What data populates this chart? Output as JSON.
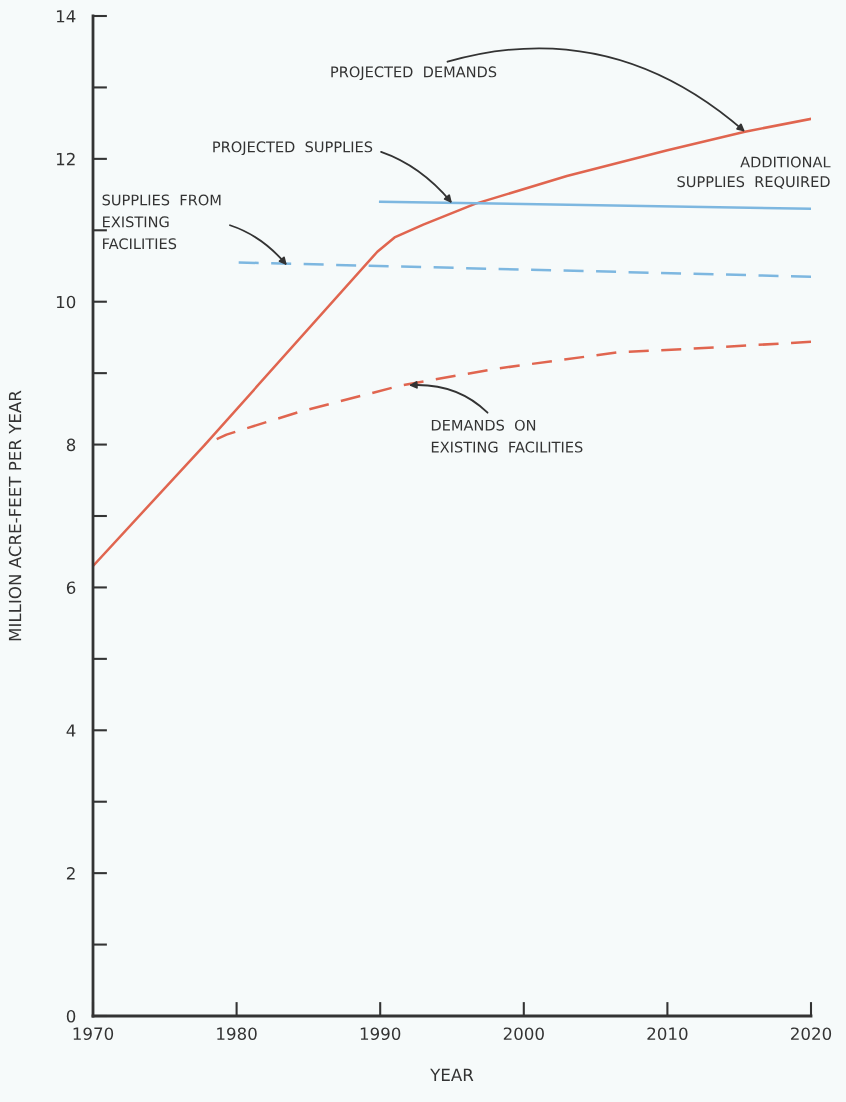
{
  "chart_data": {
    "type": "line",
    "xlabel": "YEAR",
    "ylabel": "MILLION ACRE-FEET PER YEAR",
    "xlim": [
      1970,
      2020
    ],
    "xticks": [
      1970,
      1980,
      1990,
      2000,
      2010,
      2020
    ],
    "ylim": [
      0,
      14
    ],
    "yticks": [
      0,
      {
        "value": 1,
        "label": null
      },
      2,
      {
        "value": 3,
        "label": null
      },
      4,
      {
        "value": 5,
        "label": null
      },
      6,
      {
        "value": 7,
        "label": null
      },
      8,
      {
        "value": 9,
        "label": null
      },
      10,
      {
        "value": 11,
        "label": null
      },
      12,
      {
        "value": 13,
        "label": null
      },
      14
    ],
    "grid": false,
    "legend": false,
    "series": [
      {
        "color": "#e0654f",
        "line_style": "solid",
        "x": [
          1970,
          1977.8,
          1989.8,
          1991,
          1993,
          1996.6,
          2003,
          2010,
          2015.4,
          2020
        ],
        "values": [
          6.3,
          8.0,
          10.7,
          10.9,
          11.08,
          11.37,
          11.76,
          12.12,
          12.38,
          12.56
        ]
      },
      {
        "color": "#e0654f",
        "line_style": "dashed",
        "x": [
          1977.8,
          1979.3,
          1984.4,
          1991.5,
          1998,
          2006.5,
          2013.3,
          2020
        ],
        "values": [
          8.0,
          8.14,
          8.46,
          8.83,
          9.06,
          9.29,
          9.36,
          9.44
        ]
      },
      {
        "color": "#7db7e0",
        "line_style": "solid",
        "x": [
          1990,
          2020
        ],
        "values": [
          11.4,
          11.3
        ]
      },
      {
        "color": "#7db7e0",
        "line_style": "dashed",
        "x": [
          1980,
          2020
        ],
        "values": [
          10.55,
          10.35
        ]
      }
    ],
    "annotations": [
      {
        "text": "PROJECTED  DEMANDS",
        "x": 2015.4,
        "y": 12.38
      },
      {
        "text": "PROJECTED  SUPPLIES",
        "x": 1995,
        "y": 11.38
      },
      {
        "text": "SUPPLIES  FROM\nEXISTING\nFACILITIES",
        "x": 1983.5,
        "y": 10.51
      },
      {
        "text": "DEMANDS  ON\nEXISTING  FACILITIES",
        "x": 1992,
        "y": 8.83
      },
      "ADDITIONAL\nSUPPLIES  REQUIRED"
    ]
  }
}
